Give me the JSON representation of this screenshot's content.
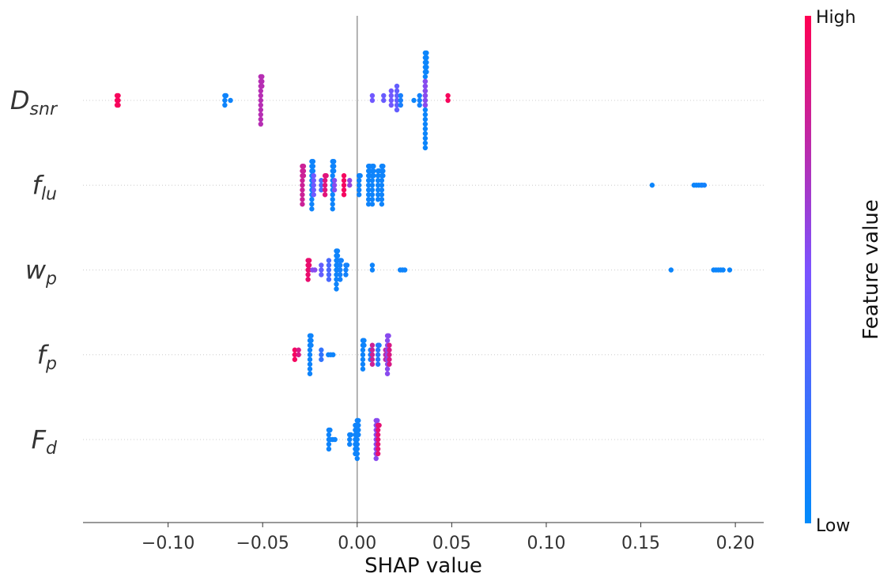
{
  "chart_data": {
    "type": "scatter",
    "subtype": "shap-beeswarm",
    "xlabel": "SHAP value",
    "xlim": [
      -0.145,
      0.215
    ],
    "xticks": [
      -0.1,
      -0.05,
      0.0,
      0.05,
      0.1,
      0.15,
      0.2
    ],
    "xtick_labels": [
      "−0.10",
      "−0.05",
      "0.00",
      "0.05",
      "0.10",
      "0.15",
      "0.20"
    ],
    "features": [
      {
        "name": "D_snr",
        "base": "D",
        "sub": "snr",
        "clusters": [
          {
            "x": -0.127,
            "half": 1,
            "n": 6,
            "v": 0.97
          },
          {
            "x": -0.07,
            "half": 1,
            "n": 4,
            "v": 0.06
          },
          {
            "x": -0.067,
            "half": 0,
            "n": 1,
            "v": 0.06
          },
          {
            "x": -0.051,
            "half": 5,
            "n": 14,
            "v": 0.72
          },
          {
            "x": 0.008,
            "half": 1,
            "n": 2,
            "v": 0.45
          },
          {
            "x": 0.014,
            "half": 1,
            "n": 2,
            "v": 0.42
          },
          {
            "x": 0.018,
            "half": 2,
            "n": 4,
            "v": 0.45
          },
          {
            "x": 0.021,
            "half": 3,
            "n": 6,
            "v": 0.4
          },
          {
            "x": 0.023,
            "half": 1,
            "n": 3,
            "v": 0.1
          },
          {
            "x": 0.03,
            "half": 0,
            "n": 1,
            "v": 0.05
          },
          {
            "x": 0.033,
            "half": 1,
            "n": 3,
            "v": 0.08
          },
          {
            "x": 0.036,
            "half": 10,
            "n": 26,
            "v": 0.05
          },
          {
            "x": 0.036,
            "half": 4,
            "n": 6,
            "v": 0.55
          },
          {
            "x": 0.048,
            "half": 1,
            "n": 2,
            "v": 0.97
          }
        ]
      },
      {
        "name": "f_lu",
        "base": "f",
        "sub": "lu",
        "clusters": [
          {
            "x": -0.029,
            "half": 4,
            "n": 12,
            "v": 0.8
          },
          {
            "x": -0.024,
            "half": 5,
            "n": 14,
            "v": 0.06
          },
          {
            "x": -0.023,
            "half": 2,
            "n": 5,
            "v": 0.45
          },
          {
            "x": -0.019,
            "half": 1,
            "n": 3,
            "v": 0.3
          },
          {
            "x": -0.017,
            "half": 2,
            "n": 6,
            "v": 0.88
          },
          {
            "x": -0.013,
            "half": 5,
            "n": 14,
            "v": 0.06
          },
          {
            "x": -0.012,
            "half": 1,
            "n": 3,
            "v": 0.55
          },
          {
            "x": -0.007,
            "half": 2,
            "n": 5,
            "v": 0.96
          },
          {
            "x": -0.004,
            "half": 1,
            "n": 2,
            "v": 0.6
          },
          {
            "x": 0.001,
            "half": 2,
            "n": 6,
            "v": 0.06
          },
          {
            "x": 0.006,
            "half": 4,
            "n": 12,
            "v": 0.06
          },
          {
            "x": 0.008,
            "half": 4,
            "n": 12,
            "v": 0.06
          },
          {
            "x": 0.011,
            "half": 3,
            "n": 8,
            "v": 0.06
          },
          {
            "x": 0.013,
            "half": 4,
            "n": 12,
            "v": 0.06
          },
          {
            "x": 0.156,
            "half": 0,
            "n": 1,
            "v": 0.05
          },
          {
            "x": 0.18,
            "half": 0,
            "n": 4,
            "v": 0.05
          },
          {
            "x": 0.183,
            "half": 0,
            "n": 2,
            "v": 0.08
          }
        ]
      },
      {
        "name": "w_p",
        "base": "w",
        "sub": "p",
        "clusters": [
          {
            "x": -0.026,
            "half": 2,
            "n": 8,
            "v": 0.92
          },
          {
            "x": -0.023,
            "half": 0,
            "n": 2,
            "v": 0.55
          },
          {
            "x": -0.019,
            "half": 1,
            "n": 3,
            "v": 0.4
          },
          {
            "x": -0.015,
            "half": 2,
            "n": 5,
            "v": 0.3
          },
          {
            "x": -0.011,
            "half": 4,
            "n": 14,
            "v": 0.06
          },
          {
            "x": -0.009,
            "half": 2,
            "n": 6,
            "v": 0.08
          },
          {
            "x": -0.006,
            "half": 1,
            "n": 4,
            "v": 0.08
          },
          {
            "x": 0.008,
            "half": 1,
            "n": 2,
            "v": 0.06
          },
          {
            "x": 0.024,
            "half": 0,
            "n": 3,
            "v": 0.06
          },
          {
            "x": 0.166,
            "half": 0,
            "n": 1,
            "v": 0.05
          },
          {
            "x": 0.191,
            "half": 0,
            "n": 5,
            "v": 0.05
          },
          {
            "x": 0.197,
            "half": 0,
            "n": 1,
            "v": 0.05
          }
        ]
      },
      {
        "name": "f_p",
        "base": "f",
        "sub": "p",
        "clusters": [
          {
            "x": -0.033,
            "half": 1,
            "n": 3,
            "v": 0.96
          },
          {
            "x": -0.031,
            "half": 1,
            "n": 2,
            "v": 0.85
          },
          {
            "x": -0.025,
            "half": 4,
            "n": 12,
            "v": 0.06
          },
          {
            "x": -0.019,
            "half": 1,
            "n": 3,
            "v": 0.2
          },
          {
            "x": -0.014,
            "half": 0,
            "n": 3,
            "v": 0.06
          },
          {
            "x": 0.003,
            "half": 3,
            "n": 9,
            "v": 0.06
          },
          {
            "x": 0.007,
            "half": 1,
            "n": 3,
            "v": 0.1
          },
          {
            "x": 0.008,
            "half": 2,
            "n": 5,
            "v": 0.8
          },
          {
            "x": 0.011,
            "half": 2,
            "n": 6,
            "v": 0.15
          },
          {
            "x": 0.015,
            "half": 1,
            "n": 3,
            "v": 0.75
          },
          {
            "x": 0.016,
            "half": 4,
            "n": 10,
            "v": 0.55
          },
          {
            "x": 0.017,
            "half": 2,
            "n": 5,
            "v": 0.85
          }
        ]
      },
      {
        "name": "F_d",
        "base": "F",
        "sub": "d",
        "clusters": [
          {
            "x": -0.015,
            "half": 2,
            "n": 6,
            "v": 0.06
          },
          {
            "x": -0.013,
            "half": 0,
            "n": 3,
            "v": 0.06
          },
          {
            "x": -0.004,
            "half": 1,
            "n": 4,
            "v": 0.06
          },
          {
            "x": -0.001,
            "half": 3,
            "n": 9,
            "v": 0.06
          },
          {
            "x": 0.0,
            "half": 4,
            "n": 13,
            "v": 0.06
          },
          {
            "x": 0.01,
            "half": 4,
            "n": 12,
            "v": 0.55
          },
          {
            "x": 0.011,
            "half": 3,
            "n": 8,
            "v": 0.9
          }
        ]
      }
    ],
    "colorbar": {
      "title": "Feature value",
      "high_label": "High",
      "low_label": "Low",
      "low_color": "#008bfb",
      "mid_color": "#7c52ff",
      "high_color": "#ff0052"
    },
    "zero_line": true,
    "row_gridlines": true
  }
}
